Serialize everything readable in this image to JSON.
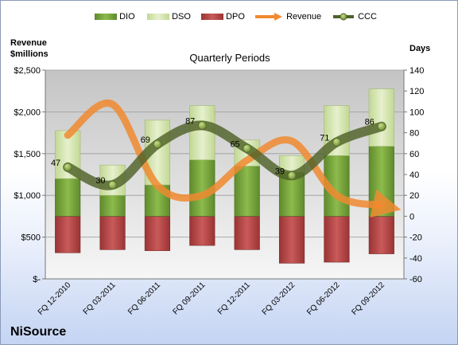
{
  "chart_data": {
    "type": "bar",
    "title": "Quarterly Periods",
    "company": "NiSource",
    "categories": [
      "FQ 12-2010",
      "FQ 03-2011",
      "FQ 06-2011",
      "FQ 09-2011",
      "FQ 12-2011",
      "FQ 03-2012",
      "FQ 06-2012",
      "FQ 09-2012"
    ],
    "left_axis": {
      "label_line1": "Revenue",
      "label_line2": "$millions",
      "range": [
        0,
        2500
      ],
      "ticks": [
        {
          "value": 0,
          "label": "$-"
        },
        {
          "value": 500,
          "label": "$500"
        },
        {
          "value": 1000,
          "label": "$1,000"
        },
        {
          "value": 1500,
          "label": "$1,500"
        },
        {
          "value": 2000,
          "label": "$2,000"
        },
        {
          "value": 2500,
          "label": "$2,500"
        }
      ]
    },
    "right_axis": {
      "label": "Days",
      "range": [
        -60,
        140
      ],
      "ticks": [
        -60,
        -40,
        -20,
        0,
        20,
        40,
        60,
        80,
        100,
        120,
        140
      ]
    },
    "series": [
      {
        "name": "DIO",
        "axis": "right",
        "kind": "stacked-bar",
        "color": "#77a43c",
        "values": [
          36,
          20,
          30,
          54,
          48,
          42,
          58,
          67
        ]
      },
      {
        "name": "DSO",
        "axis": "right",
        "kind": "stacked-bar",
        "color": "#d8e7b4",
        "values": [
          46,
          29,
          62,
          52,
          25,
          16,
          48,
          55
        ]
      },
      {
        "name": "DPO",
        "axis": "right",
        "kind": "negative-bar",
        "color": "#b84848",
        "values": [
          -35,
          -32,
          -33,
          -28,
          -32,
          -45,
          -44,
          -36
        ]
      },
      {
        "name": "Revenue",
        "axis": "left",
        "kind": "line",
        "color": "#f08a30",
        "values": [
          1720,
          2090,
          1120,
          1000,
          1420,
          1650,
          1000,
          880
        ]
      },
      {
        "name": "CCC",
        "axis": "right",
        "kind": "line",
        "color": "#4f6228",
        "values": [
          47,
          30,
          69,
          87,
          65,
          39,
          71,
          86
        ]
      }
    ],
    "ccc_labels": [
      "47",
      "30",
      "69",
      "87",
      "65",
      "39",
      "71",
      "86"
    ],
    "colors": {
      "plot_bg_top": "#c8c8c8",
      "plot_bg_bottom": "#f4f4f4",
      "ccc_line": "#4f6228",
      "revenue_line": "#f08a30"
    }
  }
}
